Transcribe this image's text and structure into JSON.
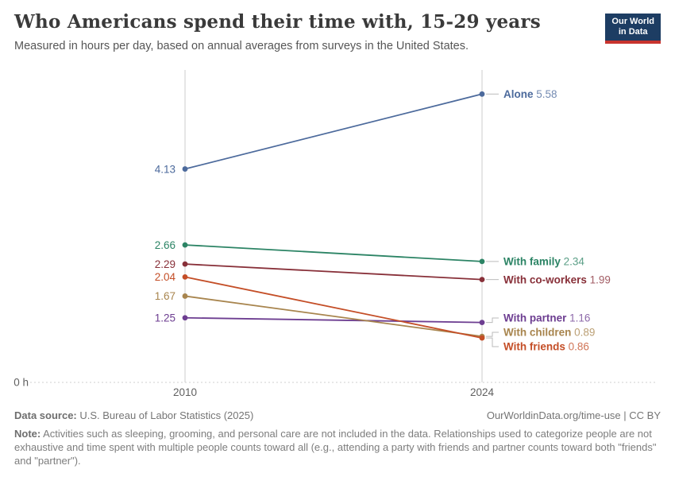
{
  "header": {
    "title": "Who Americans spend their time with, 15-29 years",
    "subtitle": "Measured in hours per day, based on annual averages from surveys in the United States."
  },
  "logo": {
    "line1": "Our World",
    "line2": "in Data"
  },
  "chart_data": {
    "type": "line",
    "variant": "slope",
    "title": "Who Americans spend their time with, 15-29 years",
    "unit": "hours per day",
    "x": [
      2010,
      2024
    ],
    "ylim": [
      0,
      6
    ],
    "y_zero_label": "0 h",
    "grid": "baseline-dotted-only",
    "legend_position": "right-of-lines",
    "series": [
      {
        "name": "Alone",
        "color": "#4C6A9C",
        "values": [
          4.13,
          5.58
        ]
      },
      {
        "name": "With family",
        "color": "#2C8465",
        "values": [
          2.66,
          2.34
        ]
      },
      {
        "name": "With co-workers",
        "color": "#883039",
        "values": [
          2.29,
          1.99
        ]
      },
      {
        "name": "With partner",
        "color": "#6D3E91",
        "values": [
          1.25,
          1.16
        ]
      },
      {
        "name": "With children",
        "color": "#A8854E",
        "values": [
          1.67,
          0.89
        ]
      },
      {
        "name": "With friends",
        "color": "#C44E27",
        "values": [
          2.04,
          0.86
        ]
      }
    ]
  },
  "footer": {
    "source_label": "Data source:",
    "source": " U.S. Bureau of Labor Statistics (2025)",
    "link": "OurWorldinData.org/time-use | CC BY",
    "note_label": "Note:",
    "note": " Activities such as sleeping, grooming, and personal care are not included in the data. Relationships used to categorize people are not exhaustive and time spent with multiple people counts toward all (e.g., attending a party with friends and partner counts toward both \"friends\" and \"partner\")."
  }
}
